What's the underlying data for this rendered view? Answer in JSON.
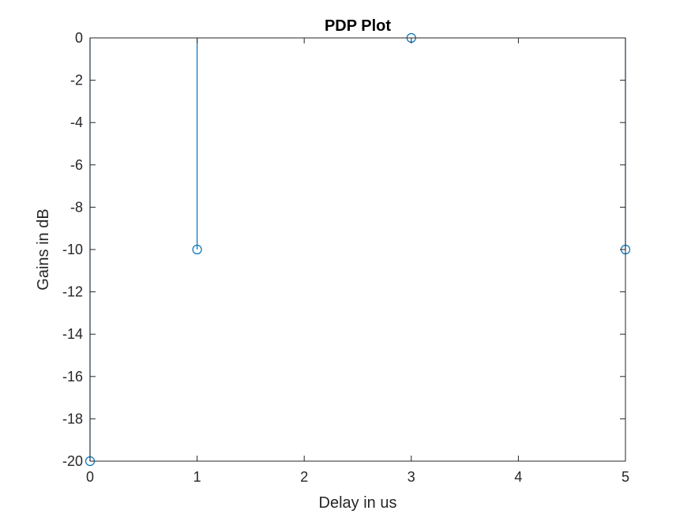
{
  "chart_data": {
    "type": "stem",
    "title": "PDP Plot",
    "xlabel": "Delay in us",
    "ylabel": "Gains in dB",
    "xlim": [
      0,
      5
    ],
    "ylim": [
      -20,
      0
    ],
    "xticks": [
      0,
      1,
      2,
      3,
      4,
      5
    ],
    "yticks": [
      0,
      -2,
      -4,
      -6,
      -8,
      -10,
      -12,
      -14,
      -16,
      -18,
      -20
    ],
    "xtick_labels": [
      "0",
      "1",
      "2",
      "3",
      "4",
      "5"
    ],
    "ytick_labels": [
      "0",
      "-2",
      "-4",
      "-6",
      "-8",
      "-10",
      "-12",
      "-14",
      "-16",
      "-18",
      "-20"
    ],
    "stem_baseline": 0,
    "grid": false,
    "series": [
      {
        "x": [
          0,
          1,
          3,
          5
        ],
        "y": [
          -20,
          -10,
          0,
          -10
        ],
        "color": "#0072BD",
        "marker": "circle-open"
      }
    ]
  }
}
